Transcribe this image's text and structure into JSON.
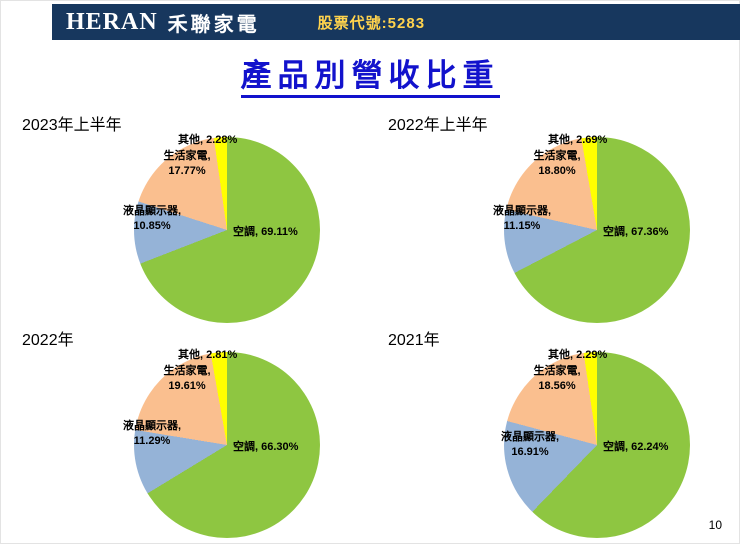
{
  "header": {
    "logo": "HERAN",
    "brand": "禾聯家電",
    "stock": "股票代號:5283"
  },
  "title": "產品別營收比重",
  "page_number": "10",
  "colors": {
    "air": "#8EC641",
    "lcd": "#95B3D7",
    "appliance": "#FABF8F",
    "other": "#FFFF00",
    "header_bg": "#17375E",
    "title_color": "#1212CC",
    "stock_color": "#FFD34D"
  },
  "chart_data": [
    {
      "type": "pie",
      "title": "2023年上半年",
      "legend_position": "none",
      "slices": [
        {
          "name": "空調",
          "value": 69.11,
          "color": "air"
        },
        {
          "name": "液晶顯示器",
          "value": 10.85,
          "color": "lcd"
        },
        {
          "name": "生活家電",
          "value": 17.77,
          "color": "appliance"
        },
        {
          "name": "其他",
          "value": 2.28,
          "color": "other"
        }
      ]
    },
    {
      "type": "pie",
      "title": "2022年上半年",
      "legend_position": "none",
      "slices": [
        {
          "name": "空調",
          "value": 67.36,
          "color": "air"
        },
        {
          "name": "液晶顯示器",
          "value": 11.15,
          "color": "lcd"
        },
        {
          "name": "生活家電",
          "value": 18.8,
          "color": "appliance"
        },
        {
          "name": "其他",
          "value": 2.69,
          "color": "other"
        }
      ]
    },
    {
      "type": "pie",
      "title": "2022年",
      "legend_position": "none",
      "slices": [
        {
          "name": "空調",
          "value": 66.3,
          "color": "air"
        },
        {
          "name": "液晶顯示器",
          "value": 11.29,
          "color": "lcd"
        },
        {
          "name": "生活家電",
          "value": 19.61,
          "color": "appliance"
        },
        {
          "name": "其他",
          "value": 2.81,
          "color": "other"
        }
      ]
    },
    {
      "type": "pie",
      "title": "2021年",
      "legend_position": "none",
      "slices": [
        {
          "name": "空調",
          "value": 62.24,
          "color": "air"
        },
        {
          "name": "液晶顯示器",
          "value": 16.91,
          "color": "lcd"
        },
        {
          "name": "生活家電",
          "value": 18.56,
          "color": "appliance"
        },
        {
          "name": "其他",
          "value": 2.29,
          "color": "other"
        }
      ]
    }
  ]
}
